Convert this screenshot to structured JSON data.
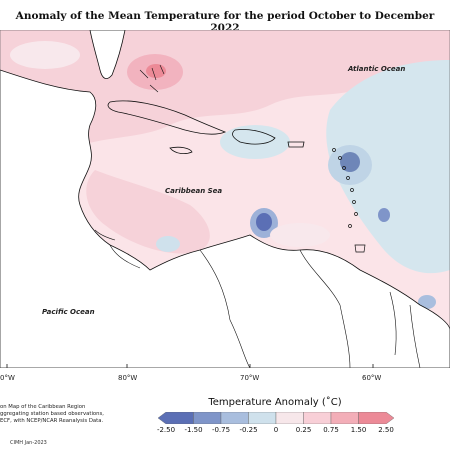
{
  "title": "Anomaly of the Mean Temperature for the period October to December 2022",
  "map_labels": {
    "atlantic": "Atlantic Ocean",
    "caribbean": "Caribbean Sea",
    "pacific": "Pacific Ocean"
  },
  "longitude_ticks": [
    "0°W",
    "80°W",
    "70°W",
    "60°W"
  ],
  "footnote_lines": [
    "on Map of the Caribbean Region",
    "ggregating station based observations,",
    "ECF, with NCEP/NCAR Reanalysis Data."
  ],
  "credit": "CIMH Jan-2023",
  "legend": {
    "title": "Temperature Anomaly (˚C)",
    "ticks": [
      "-2.50",
      "-1.50",
      "-0.75",
      "-0.25",
      "0",
      "0.25",
      "0.75",
      "1.50",
      "2.50"
    ],
    "colors": [
      "#5b6fb5",
      "#7f95c9",
      "#a9bede",
      "#cfe1ec",
      "#f7e7ea",
      "#f8cfd7",
      "#f3aeb8",
      "#ec8a97"
    ]
  },
  "colors": {
    "warm": "#f8d6dd",
    "warm_strong": "#f2b3bf",
    "cool": "#d5e6ee",
    "cool_strong": "#6e86b8",
    "land": "#ffffff",
    "coast": "#111111"
  }
}
